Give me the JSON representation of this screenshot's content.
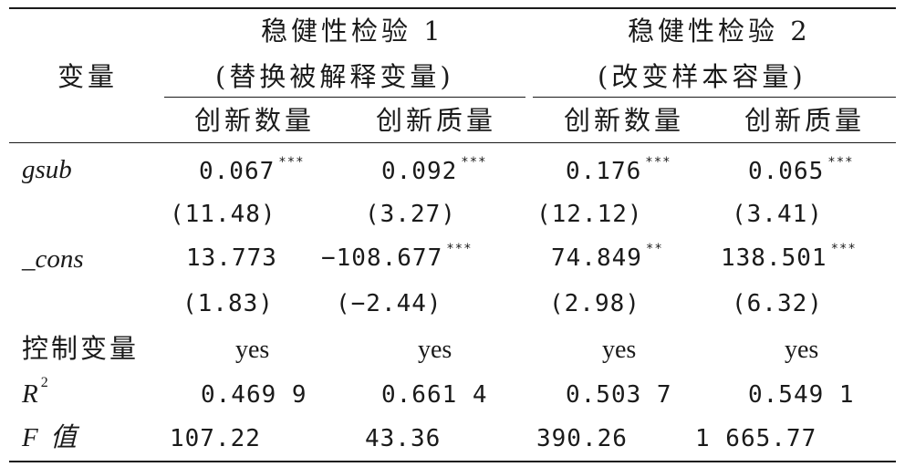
{
  "header": {
    "var_label": "变量",
    "group1_title": "稳健性检验 1",
    "group1_sub": "(替换被解释变量)",
    "group2_title": "稳健性检验 2",
    "group2_sub": "(改变样本容量)",
    "col1": "创新数量",
    "col2": "创新质量",
    "col3": "创新数量",
    "col4": "创新质量"
  },
  "rows": {
    "gsub": {
      "label": "gsub",
      "coef": [
        "0.067",
        "0.092",
        "0.176",
        "0.065"
      ],
      "stars": [
        "***",
        "***",
        "***",
        "***"
      ],
      "t": [
        "(11.48)",
        "(3.27)",
        "(12.12)",
        "(3.41)"
      ]
    },
    "cons": {
      "label": "_cons",
      "coef": [
        "13.773",
        "−108.677",
        "74.849",
        "138.501"
      ],
      "stars": [
        "",
        "***",
        "**",
        "***"
      ],
      "t": [
        "(1.83)",
        "(−2.44)",
        "(2.98)",
        "(6.32)"
      ]
    },
    "controls": {
      "label": "控制变量",
      "values": [
        "yes",
        "yes",
        "yes",
        "yes"
      ]
    },
    "r2": {
      "label": "R",
      "sup": "2",
      "values": [
        "0.469 9",
        "0.661 4",
        "0.503 7",
        "0.549 1"
      ]
    },
    "f": {
      "label": "F 值",
      "values": [
        "107.22",
        "43.36",
        "390.26",
        "1 665.77"
      ]
    }
  }
}
